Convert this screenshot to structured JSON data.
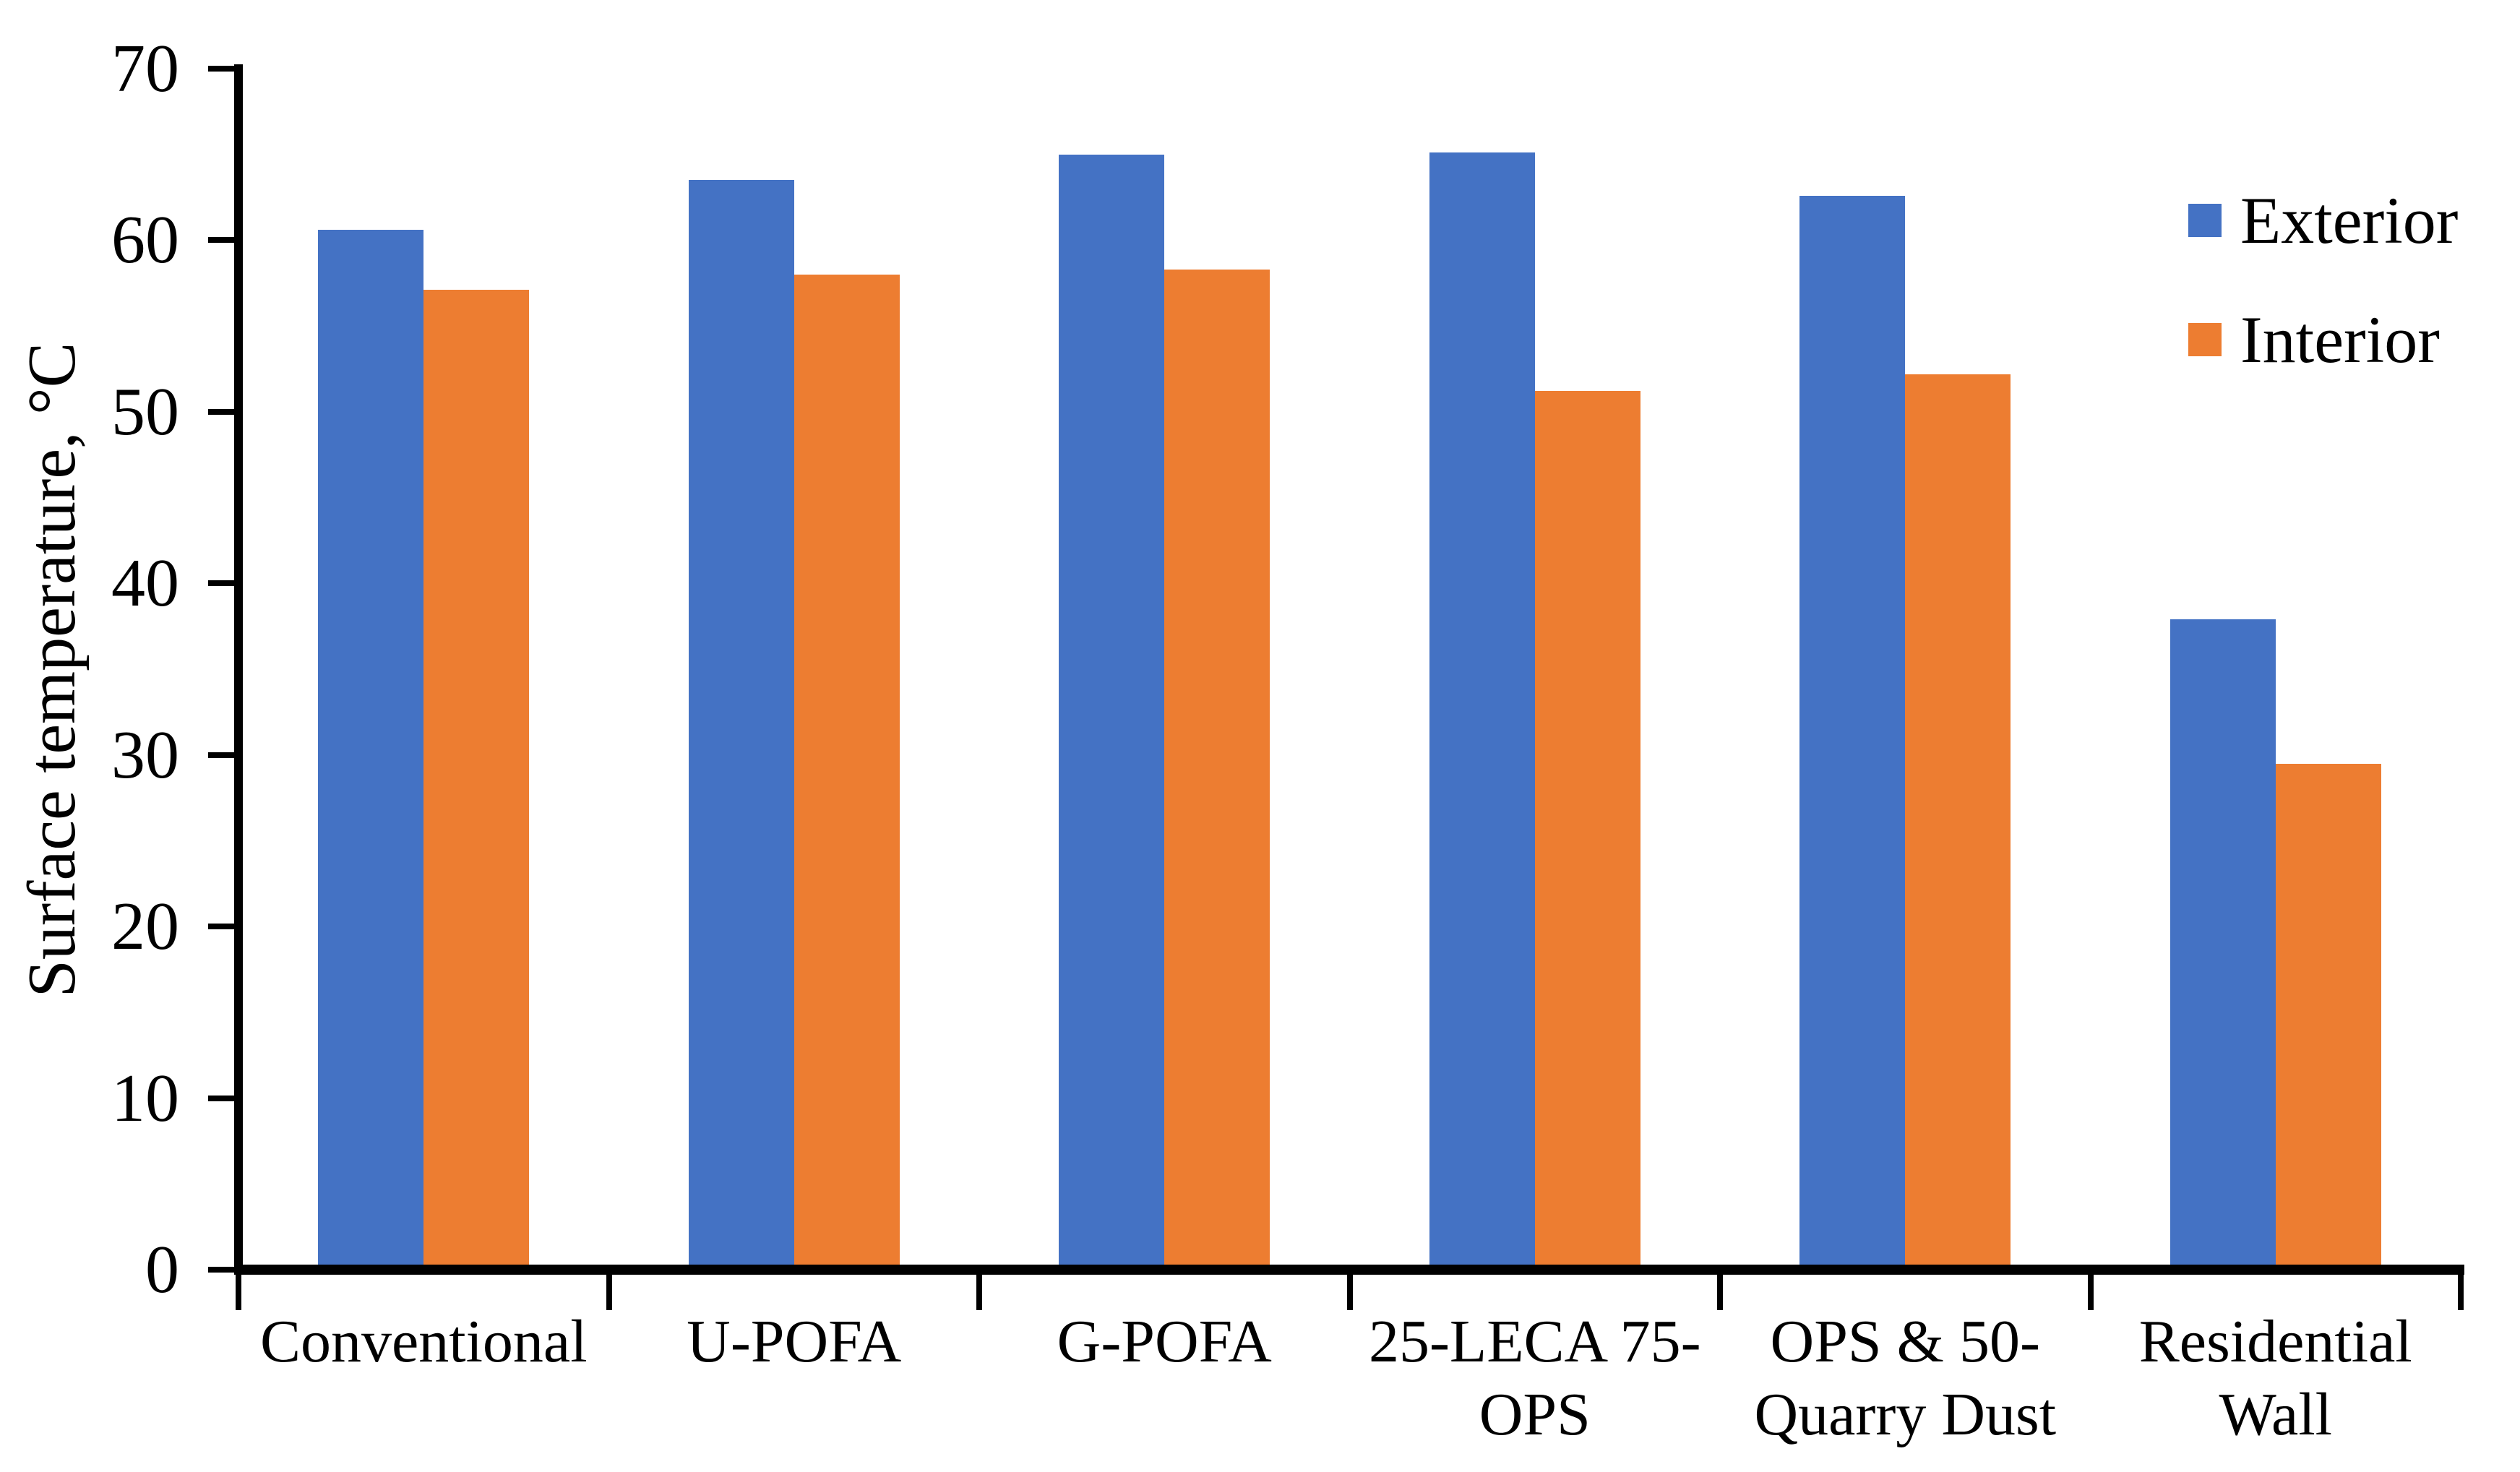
{
  "chart_data": {
    "type": "bar",
    "title": "",
    "xlabel": "",
    "ylabel": "Surface temperature, °C",
    "ylim": [
      0,
      70
    ],
    "y_ticks": [
      0,
      10,
      20,
      30,
      40,
      50,
      60,
      70
    ],
    "grid": false,
    "legend_position": "right",
    "categories": [
      "Conventional",
      "U-POFA",
      "G-POFA",
      "25-LECA 75-\nOPS",
      "OPS & 50-\nQuarry Dust",
      "Residential\nWall"
    ],
    "series": [
      {
        "name": "Exterior",
        "color": "#4472C4",
        "values": [
          60.6,
          63.5,
          65.0,
          65.1,
          62.6,
          37.9
        ]
      },
      {
        "name": "Interior",
        "color": "#ED7D31",
        "values": [
          57.1,
          58.0,
          58.3,
          51.2,
          52.2,
          29.5
        ]
      }
    ],
    "axis_color": "#000000",
    "text_color": "#000000",
    "background_color": "#FFFFFF"
  }
}
